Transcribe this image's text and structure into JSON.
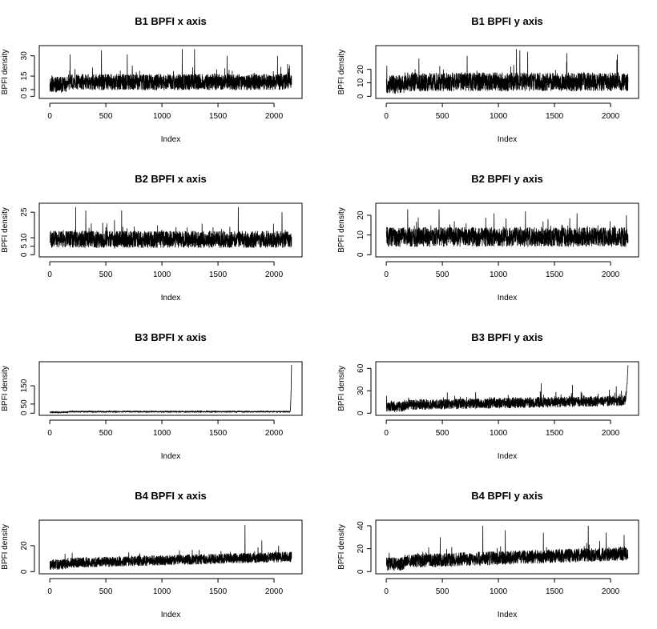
{
  "figure": {
    "background": "#ffffff",
    "line_color": "#000000"
  },
  "chart_data": [
    {
      "type": "line",
      "title": "B1 BPFI x axis",
      "xlabel": "Index",
      "ylabel": "BPFI density",
      "xlim": [
        0,
        2156
      ],
      "ylim": [
        0,
        36
      ],
      "xticks": [
        0,
        500,
        1000,
        1500,
        2000
      ],
      "yticks": [
        0,
        5,
        15,
        30
      ],
      "n": 2156,
      "profile": {
        "base": 10,
        "start": 8,
        "spread": 6,
        "min": 0.5,
        "max": 35,
        "spikes": [
          [
            180,
            31
          ],
          [
            460,
            34
          ],
          [
            690,
            31
          ],
          [
            1180,
            35
          ],
          [
            1290,
            35
          ],
          [
            1580,
            30
          ],
          [
            2030,
            30
          ],
          [
            2120,
            24
          ]
        ]
      }
    },
    {
      "type": "line",
      "title": "B1 BPFI y axis",
      "xlabel": "Index",
      "ylabel": "BPFI density",
      "xlim": [
        0,
        2156
      ],
      "ylim": [
        0,
        36
      ],
      "xticks": [
        0,
        500,
        1000,
        1500,
        2000
      ],
      "yticks": [
        0,
        10,
        20
      ],
      "n": 2156,
      "profile": {
        "base": 10,
        "start": 8,
        "spread": 7,
        "min": 0.5,
        "max": 35,
        "spikes": [
          [
            290,
            28
          ],
          [
            720,
            30
          ],
          [
            1160,
            35
          ],
          [
            1190,
            34
          ],
          [
            1260,
            33
          ],
          [
            1610,
            32
          ],
          [
            2060,
            31
          ]
        ]
      }
    },
    {
      "type": "line",
      "title": "B2 BPFI x axis",
      "xlabel": "Index",
      "ylabel": "BPFI density",
      "xlim": [
        0,
        2156
      ],
      "ylim": [
        0,
        29
      ],
      "xticks": [
        0,
        500,
        1000,
        1500,
        2000
      ],
      "yticks": [
        0,
        5,
        10,
        25
      ],
      "n": 2156,
      "profile": {
        "base": 8.5,
        "start": 8.5,
        "spread": 5,
        "min": 0.5,
        "max": 28.5,
        "spikes": [
          [
            230,
            28
          ],
          [
            320,
            26
          ],
          [
            640,
            26
          ],
          [
            1680,
            28
          ],
          [
            2070,
            25
          ]
        ]
      }
    },
    {
      "type": "line",
      "title": "B2 BPFI y axis",
      "xlabel": "Index",
      "ylabel": "BPFI density",
      "xlim": [
        0,
        2156
      ],
      "ylim": [
        0,
        25
      ],
      "xticks": [
        0,
        500,
        1000,
        1500,
        2000
      ],
      "yticks": [
        0,
        10,
        20
      ],
      "n": 2156,
      "profile": {
        "base": 8.5,
        "start": 8.5,
        "spread": 5,
        "min": 0.5,
        "max": 24,
        "spikes": [
          [
            190,
            23
          ],
          [
            470,
            23
          ],
          [
            960,
            21
          ],
          [
            1240,
            22
          ],
          [
            1700,
            21
          ],
          [
            2140,
            20
          ]
        ]
      }
    },
    {
      "type": "line",
      "title": "B3 BPFI x axis",
      "xlabel": "Index",
      "ylabel": "BPFI density",
      "xlim": [
        0,
        2156
      ],
      "ylim": [
        0,
        270
      ],
      "xticks": [
        0,
        500,
        1000,
        1500,
        2000
      ],
      "yticks": [
        0,
        50,
        150
      ],
      "n": 2156,
      "profile": {
        "base": 8,
        "start": 5,
        "spread": 3,
        "min": 1,
        "max": 265,
        "noise_scale": 0.8,
        "tail": {
          "from": 2140,
          "to": 265
        }
      }
    },
    {
      "type": "line",
      "title": "B3 BPFI y axis",
      "xlabel": "Index",
      "ylabel": "BPFI density",
      "xlim": [
        0,
        2156
      ],
      "ylim": [
        0,
        66
      ],
      "xticks": [
        0,
        500,
        1000,
        1500,
        2000
      ],
      "yticks": [
        0,
        30,
        60
      ],
      "n": 2156,
      "profile": {
        "base": 10,
        "start": 8,
        "spread": 7,
        "trend": 6,
        "min": 0.5,
        "max": 65,
        "spikes": [
          [
            1380,
            40
          ],
          [
            1660,
            38
          ],
          [
            2050,
            36
          ]
        ],
        "tail": {
          "from": 2120,
          "to": 64
        }
      }
    },
    {
      "type": "line",
      "title": "B4 BPFI x axis",
      "xlabel": "Index",
      "ylabel": "BPFI density",
      "xlim": [
        0,
        2156
      ],
      "ylim": [
        0,
        38
      ],
      "xticks": [
        0,
        500,
        1000,
        1500,
        2000
      ],
      "yticks": [
        0,
        20
      ],
      "n": 2156,
      "profile": {
        "base": 6,
        "start": 5,
        "spread": 4,
        "trend": 5,
        "min": 0.5,
        "max": 37,
        "spikes": [
          [
            1740,
            36
          ],
          [
            1890,
            24
          ],
          [
            2040,
            20
          ]
        ]
      }
    },
    {
      "type": "line",
      "title": "B4 BPFI y axis",
      "xlabel": "Index",
      "ylabel": "BPFI density",
      "xlim": [
        0,
        2156
      ],
      "ylim": [
        0,
        43
      ],
      "xticks": [
        0,
        500,
        1000,
        1500,
        2000
      ],
      "yticks": [
        0,
        20,
        40
      ],
      "n": 2156,
      "profile": {
        "base": 8,
        "start": 6,
        "spread": 6,
        "trend": 7,
        "min": 0.5,
        "max": 41,
        "spikes": [
          [
            480,
            30
          ],
          [
            860,
            40
          ],
          [
            1060,
            36
          ],
          [
            1400,
            34
          ],
          [
            1800,
            40
          ],
          [
            1960,
            34
          ],
          [
            2120,
            32
          ]
        ]
      }
    }
  ]
}
